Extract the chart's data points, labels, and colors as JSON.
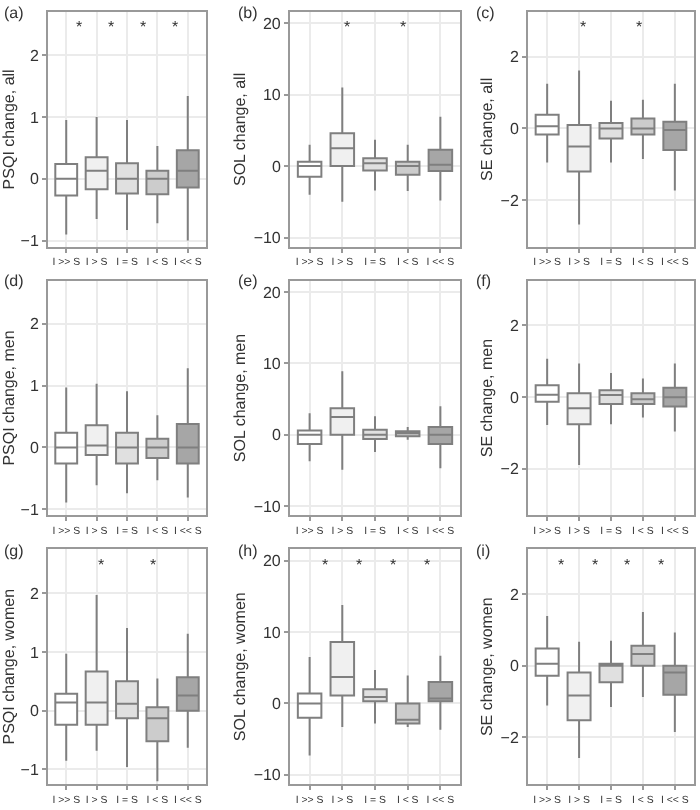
{
  "chart_data": [
    {
      "type": "box",
      "title": "(a)",
      "ylabel": "PSQI change, all",
      "categories": [
        "I >> S",
        "I > S",
        "I = S",
        "I < S",
        "I << S"
      ],
      "colors": [
        "#ffffff",
        "#f0f0f0",
        "#e0e0e0",
        "#cccccc",
        "#a6a6a6"
      ],
      "ylim": [
        -1.1,
        2.7
      ],
      "yticks": [
        {
          "value": -1,
          "label": "−1"
        },
        0,
        1,
        2
      ],
      "grid": true,
      "boxes": [
        {
          "low": -0.9,
          "q1": -0.27,
          "median": 0,
          "q3": 0.24,
          "high": 0.95
        },
        {
          "low": -0.65,
          "q1": -0.17,
          "median": 0.13,
          "q3": 0.35,
          "high": 1.0
        },
        {
          "low": -0.83,
          "q1": -0.24,
          "median": 0,
          "q3": 0.25,
          "high": 0.95
        },
        {
          "low": -0.72,
          "q1": -0.25,
          "median": 0,
          "q3": 0.13,
          "high": 0.53
        },
        {
          "low": -1.0,
          "q1": -0.14,
          "median": 0.13,
          "q3": 0.46,
          "high": 1.34
        }
      ],
      "annotations": [
        "*",
        "*",
        "*",
        "*"
      ]
    },
    {
      "type": "box",
      "title": "(b)",
      "ylabel": "SOL change, all",
      "categories": [
        "I >> S",
        "I > S",
        "I = S",
        "I < S",
        "I << S"
      ],
      "colors": [
        "#ffffff",
        "#f0f0f0",
        "#e0e0e0",
        "#cccccc",
        "#a6a6a6"
      ],
      "ylim": [
        -11.3,
        21.6
      ],
      "yticks": [
        {
          "value": -10,
          "label": "−10"
        },
        0,
        10,
        20
      ],
      "grid": true,
      "boxes": [
        {
          "low": -4,
          "q1": -1.5,
          "median": 0,
          "q3": 0.6,
          "high": 3
        },
        {
          "low": -5,
          "q1": 0,
          "median": 2.5,
          "q3": 4.6,
          "high": 11
        },
        {
          "low": -3.4,
          "q1": -0.6,
          "median": 0.4,
          "q3": 1.1,
          "high": 3.7
        },
        {
          "low": -3.5,
          "q1": -1.2,
          "median": 0,
          "q3": 0.6,
          "high": 3
        },
        {
          "low": -4.8,
          "q1": -0.7,
          "median": 0.2,
          "q3": 2.3,
          "high": 6.9
        }
      ],
      "annotations": [
        "*",
        "*"
      ]
    },
    {
      "type": "box",
      "title": "(c)",
      "ylabel": "SE change, all",
      "categories": [
        "I >> S",
        "I > S",
        "I = S",
        "I < S",
        "I << S"
      ],
      "colors": [
        "#ffffff",
        "#f0f0f0",
        "#e0e0e0",
        "#cccccc",
        "#a6a6a6"
      ],
      "ylim": [
        -3.3,
        3.25
      ],
      "yticks": [
        {
          "value": -2,
          "label": "−2"
        },
        0,
        2
      ],
      "grid": true,
      "boxes": [
        {
          "low": -0.95,
          "q1": -0.17,
          "median": 0.06,
          "q3": 0.38,
          "high": 1.25
        },
        {
          "low": -2.68,
          "q1": -1.2,
          "median": -0.5,
          "q3": 0.1,
          "high": 1.62
        },
        {
          "low": -0.95,
          "q1": -0.28,
          "median": 0,
          "q3": 0.15,
          "high": 0.77
        },
        {
          "low": -0.85,
          "q1": -0.17,
          "median": 0,
          "q3": 0.28,
          "high": 0.8
        },
        {
          "low": -1.73,
          "q1": -0.6,
          "median": -0.04,
          "q3": 0.19,
          "high": 1.25
        }
      ],
      "annotations": [
        "*",
        "*"
      ]
    },
    {
      "type": "box",
      "title": "(d)",
      "ylabel": "PSQI change, men",
      "categories": [
        "I >> S",
        "I > S",
        "I = S",
        "I < S",
        "I << S"
      ],
      "colors": [
        "#ffffff",
        "#f0f0f0",
        "#e0e0e0",
        "#cccccc",
        "#a6a6a6"
      ],
      "ylim": [
        -1.1,
        2.7
      ],
      "yticks": [
        {
          "value": -1,
          "label": "−1"
        },
        0,
        1,
        2
      ],
      "grid": true,
      "boxes": [
        {
          "low": -0.89,
          "q1": -0.26,
          "median": 0,
          "q3": 0.24,
          "high": 0.97
        },
        {
          "low": -0.61,
          "q1": -0.12,
          "median": 0.03,
          "q3": 0.36,
          "high": 1.03
        },
        {
          "low": -0.74,
          "q1": -0.26,
          "median": 0,
          "q3": 0.24,
          "high": 0.91
        },
        {
          "low": -0.53,
          "q1": -0.17,
          "median": 0,
          "q3": 0.14,
          "high": 0.52
        },
        {
          "low": -0.81,
          "q1": -0.26,
          "median": 0,
          "q3": 0.38,
          "high": 1.28
        }
      ]
    },
    {
      "type": "box",
      "title": "(e)",
      "ylabel": "SOL change, men",
      "categories": [
        "I >> S",
        "I > S",
        "I = S",
        "I < S",
        "I << S"
      ],
      "colors": [
        "#ffffff",
        "#f0f0f0",
        "#e0e0e0",
        "#cccccc",
        "#a6a6a6"
      ],
      "ylim": [
        -11.3,
        21.6
      ],
      "yticks": [
        {
          "value": -10,
          "label": "−10"
        },
        0,
        10,
        20
      ],
      "grid": true,
      "boxes": [
        {
          "low": -3.7,
          "q1": -1.3,
          "median": 0,
          "q3": 0.6,
          "high": 3
        },
        {
          "low": -4.9,
          "q1": 0,
          "median": 2.5,
          "q3": 3.7,
          "high": 8.9
        },
        {
          "low": -2.4,
          "q1": -0.6,
          "median": 0,
          "q3": 0.7,
          "high": 2.6
        },
        {
          "low": -0.7,
          "q1": -0.2,
          "median": 0.2,
          "q3": 0.5,
          "high": 1.1
        },
        {
          "low": -4.7,
          "q1": -1.3,
          "median": 0,
          "q3": 1.1,
          "high": 4
        }
      ]
    },
    {
      "type": "box",
      "title": "(f)",
      "ylabel": "SE change, men",
      "categories": [
        "I >> S",
        "I > S",
        "I = S",
        "I < S",
        "I << S"
      ],
      "colors": [
        "#ffffff",
        "#f0f0f0",
        "#e0e0e0",
        "#cccccc",
        "#a6a6a6"
      ],
      "ylim": [
        -3.3,
        3.25
      ],
      "yticks": [
        {
          "value": -2,
          "label": "−2"
        },
        0,
        2
      ],
      "grid": true,
      "boxes": [
        {
          "low": -0.78,
          "q1": -0.13,
          "median": 0.07,
          "q3": 0.33,
          "high": 1.07
        },
        {
          "low": -1.89,
          "q1": -0.76,
          "median": -0.31,
          "q3": 0.11,
          "high": 0.94
        },
        {
          "low": -0.76,
          "q1": -0.19,
          "median": 0.06,
          "q3": 0.19,
          "high": 0.67
        },
        {
          "low": -0.57,
          "q1": -0.19,
          "median": -0.06,
          "q3": 0.11,
          "high": 0.52
        },
        {
          "low": -0.96,
          "q1": -0.26,
          "median": 0,
          "q3": 0.26,
          "high": 0.94
        }
      ]
    },
    {
      "type": "box",
      "title": "(g)",
      "ylabel": "PSQI change, women",
      "categories": [
        "I >> S",
        "I > S",
        "I = S",
        "I < S",
        "I << S"
      ],
      "colors": [
        "#ffffff",
        "#f0f0f0",
        "#e0e0e0",
        "#cccccc",
        "#a6a6a6"
      ],
      "ylim": [
        -1.25,
        2.75
      ],
      "yticks": [
        {
          "value": -1,
          "label": "−1"
        },
        0,
        1,
        2
      ],
      "grid": true,
      "boxes": [
        {
          "low": -0.85,
          "q1": -0.24,
          "median": 0.14,
          "q3": 0.29,
          "high": 0.97
        },
        {
          "low": -0.68,
          "q1": -0.24,
          "median": 0.14,
          "q3": 0.67,
          "high": 1.97
        },
        {
          "low": -0.96,
          "q1": -0.13,
          "median": 0.12,
          "q3": 0.5,
          "high": 1.41
        },
        {
          "low": -1.2,
          "q1": -0.52,
          "median": -0.13,
          "q3": 0.06,
          "high": 0.55
        },
        {
          "low": -0.63,
          "q1": 0,
          "median": 0.26,
          "q3": 0.57,
          "high": 1.31
        }
      ],
      "annotations": [
        "*",
        "*"
      ]
    },
    {
      "type": "box",
      "title": "(h)",
      "ylabel": "SOL change, women",
      "categories": [
        "I >> S",
        "I > S",
        "I = S",
        "I < S",
        "I << S"
      ],
      "colors": [
        "#ffffff",
        "#f0f0f0",
        "#e0e0e0",
        "#cccccc",
        "#a6a6a6"
      ],
      "ylim": [
        -11.3,
        21.6
      ],
      "yticks": [
        {
          "value": -10,
          "label": "−10"
        },
        0,
        10,
        20
      ],
      "grid": true,
      "boxes": [
        {
          "low": -7.3,
          "q1": -2,
          "median": 0,
          "q3": 1.4,
          "high": 6.5
        },
        {
          "low": -3.3,
          "q1": 1.1,
          "median": 3.7,
          "q3": 8.6,
          "high": 13.8
        },
        {
          "low": -2.8,
          "q1": 0.3,
          "median": 0.9,
          "q3": 2,
          "high": 4.7
        },
        {
          "low": -3.3,
          "q1": -2.8,
          "median": -2.3,
          "q3": 0,
          "high": 3.9
        },
        {
          "low": -3.7,
          "q1": 0.3,
          "median": 0.7,
          "q3": 3,
          "high": 6.7
        }
      ],
      "annotations": [
        "*",
        "*",
        "*",
        "*"
      ]
    },
    {
      "type": "box",
      "title": "(i)",
      "ylabel": "SE change, women",
      "categories": [
        "I >> S",
        "I > S",
        "I = S",
        "I < S",
        "I << S"
      ],
      "colors": [
        "#ffffff",
        "#f0f0f0",
        "#e0e0e0",
        "#cccccc",
        "#a6a6a6"
      ],
      "ylim": [
        -3.3,
        3.25
      ],
      "yticks": [
        {
          "value": -2,
          "label": "−2"
        },
        0,
        2
      ],
      "grid": true,
      "boxes": [
        {
          "low": -1.11,
          "q1": -0.28,
          "median": 0.06,
          "q3": 0.48,
          "high": 1.39
        },
        {
          "low": -2.57,
          "q1": -1.52,
          "median": -0.83,
          "q3": -0.19,
          "high": 0.67
        },
        {
          "low": -1.15,
          "q1": -0.46,
          "median": 0,
          "q3": 0.06,
          "high": 0.7
        },
        {
          "low": -0.87,
          "q1": 0,
          "median": 0.33,
          "q3": 0.56,
          "high": 1.5
        },
        {
          "low": -1.85,
          "q1": -0.81,
          "median": -0.19,
          "q3": 0,
          "high": 0.93
        }
      ],
      "annotations": [
        "*",
        "*",
        "*",
        "*"
      ]
    }
  ]
}
